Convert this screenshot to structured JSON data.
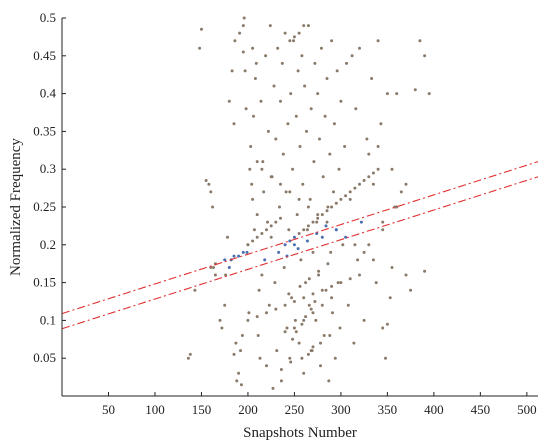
{
  "chart_data": {
    "type": "scatter",
    "title": "",
    "xlabel": "Snapshots Number",
    "ylabel": "Normalized Frequency",
    "xlim": [
      0,
      512
    ],
    "ylim": [
      0,
      0.5
    ],
    "x_ticks": [
      50,
      100,
      150,
      200,
      250,
      300,
      350,
      400,
      450,
      500
    ],
    "y_ticks": [
      0.05,
      0.1,
      0.15,
      0.2,
      0.25,
      0.3,
      0.35,
      0.4,
      0.45,
      0.5
    ],
    "x_tick_labels": [
      "50",
      "100",
      "150",
      "200",
      "250",
      "300",
      "350",
      "400",
      "450",
      "500"
    ],
    "y_tick_labels": [
      "0.05",
      "0.1",
      "0.15",
      "0.2",
      "0.25",
      "0.3",
      "0.35",
      "0.4",
      "0.45",
      "0.5"
    ],
    "grid": false,
    "scatter_color": "#8a7a6a",
    "highlight_color": "#4a6fb0",
    "line_color": "#e03030",
    "scatter": {
      "x": [
        143,
        138,
        136,
        148,
        150,
        155,
        158,
        160,
        162,
        163,
        165,
        170,
        172,
        175,
        176,
        178,
        180,
        182,
        183,
        185,
        186,
        187,
        188,
        190,
        191,
        192,
        193,
        194,
        195,
        196,
        197,
        198,
        199,
        200,
        201,
        202,
        203,
        204,
        205,
        206,
        207,
        208,
        209,
        210,
        211,
        212,
        213,
        214,
        215,
        216,
        217,
        218,
        219,
        220,
        221,
        222,
        223,
        224,
        225,
        226,
        227,
        228,
        229,
        230,
        231,
        232,
        233,
        234,
        235,
        236,
        237,
        238,
        239,
        240,
        241,
        242,
        243,
        244,
        245,
        246,
        247,
        248,
        249,
        250,
        251,
        252,
        253,
        254,
        255,
        256,
        257,
        258,
        259,
        260,
        261,
        262,
        263,
        264,
        265,
        266,
        267,
        268,
        269,
        270,
        271,
        272,
        273,
        274,
        275,
        276,
        277,
        278,
        279,
        280,
        281,
        282,
        283,
        284,
        285,
        286,
        287,
        288,
        289,
        290,
        291,
        292,
        293,
        294,
        295,
        296,
        297,
        298,
        299,
        300,
        302,
        304,
        306,
        308,
        310,
        312,
        314,
        316,
        318,
        320,
        322,
        325,
        328,
        330,
        333,
        335,
        338,
        340,
        343,
        345,
        348,
        350,
        353,
        355,
        358,
        360,
        365,
        370,
        375,
        380,
        385,
        390,
        395,
        180,
        185,
        190,
        195,
        200,
        205,
        210,
        215,
        220,
        225,
        230,
        235,
        240,
        245,
        250,
        255,
        260,
        265,
        270,
        275,
        280,
        285,
        290,
        295,
        300,
        305,
        310,
        315,
        320,
        325,
        330,
        335,
        340,
        345,
        350,
        200,
        210,
        220,
        230,
        240,
        250,
        260,
        270,
        280,
        290,
        300,
        310,
        320,
        330,
        340,
        210,
        215,
        225,
        235,
        245,
        255,
        265,
        275,
        285,
        295,
        305,
        315,
        325,
        335,
        345,
        355,
        360,
        370,
        390,
        160,
        165,
        175,
        185,
        195,
        205,
        245,
        250,
        255,
        260,
        265,
        270,
        248,
        252,
        258,
        262,
        268,
        272,
        244,
        256,
        266,
        276,
        286,
        242,
        254,
        264,
        274,
        284,
        236,
        246,
        258,
        268,
        278,
        288,
        240,
        250,
        260,
        270,
        280,
        290
      ],
      "y": [
        0.14,
        0.055,
        0.05,
        0.46,
        0.485,
        0.285,
        0.28,
        0.27,
        0.25,
        0.17,
        0.16,
        0.1,
        0.09,
        0.12,
        0.16,
        0.21,
        0.17,
        0.18,
        0.43,
        0.36,
        0.47,
        0.07,
        0.02,
        0.03,
        0.48,
        0.06,
        0.015,
        0.08,
        0.49,
        0.5,
        0.43,
        0.38,
        0.19,
        0.2,
        0.11,
        0.3,
        0.33,
        0.28,
        0.26,
        0.37,
        0.22,
        0.42,
        0.44,
        0.24,
        0.08,
        0.14,
        0.05,
        0.39,
        0.16,
        0.31,
        0.27,
        0.18,
        0.45,
        0.04,
        0.23,
        0.35,
        0.12,
        0.49,
        0.21,
        0.29,
        0.01,
        0.41,
        0.15,
        0.34,
        0.06,
        0.46,
        0.19,
        0.25,
        0.39,
        0.02,
        0.44,
        0.32,
        0.17,
        0.48,
        0.27,
        0.09,
        0.36,
        0.22,
        0.05,
        0.4,
        0.13,
        0.3,
        0.47,
        0.2,
        0.1,
        0.37,
        0.24,
        0.43,
        0.07,
        0.33,
        0.18,
        0.45,
        0.28,
        0.03,
        0.41,
        0.15,
        0.35,
        0.22,
        0.49,
        0.12,
        0.26,
        0.38,
        0.06,
        0.19,
        0.31,
        0.44,
        0.1,
        0.23,
        0.4,
        0.16,
        0.34,
        0.04,
        0.46,
        0.21,
        0.29,
        0.08,
        0.37,
        0.14,
        0.42,
        0.25,
        0.02,
        0.32,
        0.19,
        0.47,
        0.11,
        0.27,
        0.36,
        0.05,
        0.22,
        0.43,
        0.15,
        0.3,
        0.09,
        0.39,
        0.2,
        0.33,
        0.44,
        0.12,
        0.26,
        0.45,
        0.07,
        0.38,
        0.18,
        0.46,
        0.23,
        0.1,
        0.34,
        0.2,
        0.42,
        0.28,
        0.15,
        0.47,
        0.36,
        0.22,
        0.05,
        0.4,
        0.13,
        0.3,
        0.25,
        0.4,
        0.27,
        0.28,
        0.14,
        0.405,
        0.47,
        0.45,
        0.4,
        0.39,
        0.055,
        0.185,
        0.19,
        0.2,
        0.205,
        0.21,
        0.215,
        0.22,
        0.225,
        0.23,
        0.235,
        0.2,
        0.205,
        0.21,
        0.215,
        0.22,
        0.225,
        0.23,
        0.235,
        0.24,
        0.245,
        0.25,
        0.255,
        0.26,
        0.265,
        0.27,
        0.275,
        0.28,
        0.285,
        0.29,
        0.295,
        0.3,
        0.09,
        0.095,
        0.1,
        0.105,
        0.11,
        0.115,
        0.12,
        0.125,
        0.13,
        0.135,
        0.14,
        0.145,
        0.15,
        0.155,
        0.16,
        0.32,
        0.33,
        0.31,
        0.3,
        0.29,
        0.28,
        0.27,
        0.26,
        0.25,
        0.24,
        0.23,
        0.22,
        0.21,
        0.2,
        0.19,
        0.18,
        0.23,
        0.17,
        0.25,
        0.16,
        0.165,
        0.17,
        0.175,
        0.18,
        0.185,
        0.455,
        0.46,
        0.47,
        0.475,
        0.48,
        0.49,
        0.055,
        0.065,
        0.075,
        0.085,
        0.095,
        0.105,
        0.115,
        0.125,
        0.135,
        0.145,
        0.155,
        0.165,
        0.175,
        0.185,
        0.195,
        0.205,
        0.215,
        0.225,
        0.035,
        0.045,
        0.05,
        0.06,
        0.07,
        0.08,
        0.085,
        0.09,
        0.1,
        0.11,
        0.12,
        0.13
      ]
    },
    "lines": [
      {
        "x": [
          0,
          512
        ],
        "y": [
          0.109,
          0.31
        ],
        "style": "dashdot"
      },
      {
        "x": [
          0,
          512
        ],
        "y": [
          0.089,
          0.29
        ],
        "style": "dashdot"
      }
    ]
  }
}
